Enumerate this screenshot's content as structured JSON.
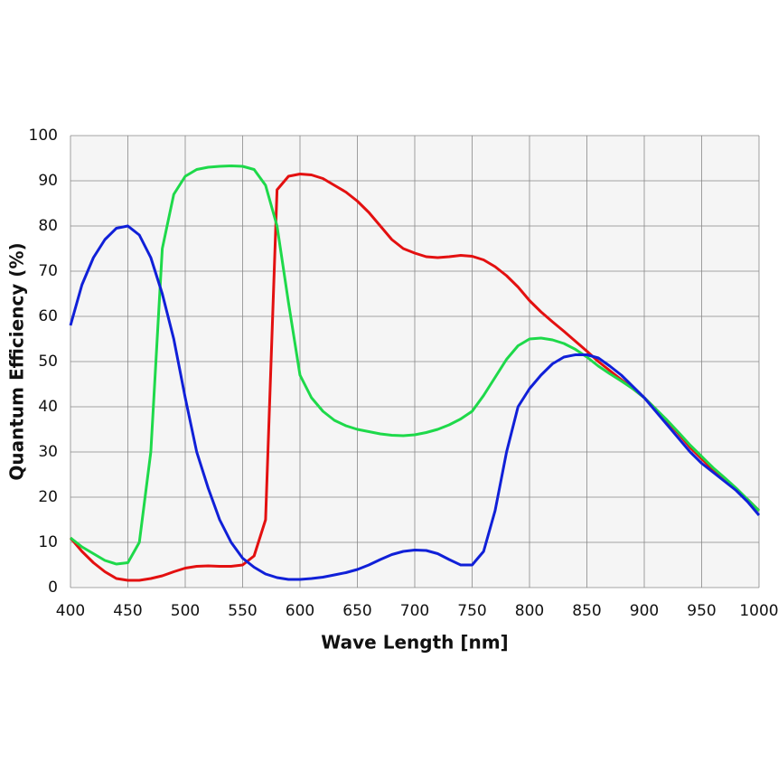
{
  "chart_data": {
    "type": "line",
    "xlabel": "Wave Length [nm]",
    "ylabel": "Quantum Efficiency (%)",
    "x": [
      400,
      410,
      420,
      430,
      440,
      450,
      460,
      470,
      480,
      490,
      500,
      510,
      520,
      530,
      540,
      550,
      560,
      570,
      580,
      590,
      600,
      610,
      620,
      630,
      640,
      650,
      660,
      670,
      680,
      690,
      700,
      710,
      720,
      730,
      740,
      750,
      760,
      770,
      780,
      790,
      800,
      810,
      820,
      830,
      840,
      850,
      860,
      870,
      880,
      890,
      900,
      910,
      920,
      930,
      940,
      950,
      960,
      970,
      980,
      990,
      1000
    ],
    "series": [
      {
        "color": "#e31010",
        "values": [
          11,
          8,
          5.5,
          3.5,
          2,
          1.6,
          1.6,
          2,
          2.6,
          3.5,
          4.3,
          4.7,
          4.8,
          4.7,
          4.7,
          5,
          7,
          15,
          88,
          91,
          91.5,
          91.3,
          90.5,
          89,
          87.5,
          85.5,
          83,
          80,
          77,
          75,
          74,
          73.2,
          73,
          73.2,
          73.5,
          73.3,
          72.5,
          71,
          69,
          66.5,
          63.5,
          61,
          58.8,
          56.7,
          54.5,
          52.3,
          50,
          48,
          46,
          44,
          42,
          39.5,
          36.8,
          34,
          31,
          28.5,
          26,
          24,
          21.8,
          19.5,
          17
        ]
      },
      {
        "color": "#1ed94a",
        "values": [
          11,
          9,
          7.5,
          6,
          5.2,
          5.5,
          10,
          30,
          75,
          87,
          91,
          92.5,
          93,
          93.2,
          93.3,
          93.2,
          92.5,
          89,
          80,
          63,
          47,
          42,
          39,
          37,
          35.8,
          35,
          34.5,
          34,
          33.7,
          33.6,
          33.8,
          34.3,
          35,
          36,
          37.3,
          39,
          42.5,
          46.5,
          50.5,
          53.5,
          55,
          55.2,
          54.8,
          54,
          52.7,
          51,
          49,
          47.3,
          45.7,
          44,
          42,
          39.5,
          37,
          34.3,
          31.5,
          29,
          26.5,
          24.3,
          22,
          19.5,
          17
        ]
      },
      {
        "color": "#1020d8",
        "values": [
          58,
          67,
          73,
          77,
          79.5,
          80,
          78,
          73,
          65,
          55,
          42,
          30,
          22,
          15,
          10,
          6.5,
          4.5,
          3,
          2.2,
          1.8,
          1.8,
          2,
          2.3,
          2.8,
          3.3,
          4,
          5,
          6.2,
          7.3,
          8,
          8.3,
          8.2,
          7.5,
          6.2,
          5,
          5,
          8,
          17,
          30,
          40,
          44,
          47,
          49.5,
          51,
          51.5,
          51.5,
          50.8,
          49,
          47,
          44.5,
          42,
          39,
          36,
          33,
          30,
          27.5,
          25.5,
          23.5,
          21.5,
          19,
          16
        ]
      }
    ],
    "xlim": [
      400,
      1000
    ],
    "xticks": [
      400,
      450,
      500,
      550,
      600,
      650,
      700,
      750,
      800,
      850,
      900,
      950,
      1000
    ],
    "ylim": [
      0,
      100
    ],
    "yticks": [
      0,
      10,
      20,
      30,
      40,
      50,
      60,
      70,
      80,
      90,
      100
    ],
    "grid": true
  }
}
